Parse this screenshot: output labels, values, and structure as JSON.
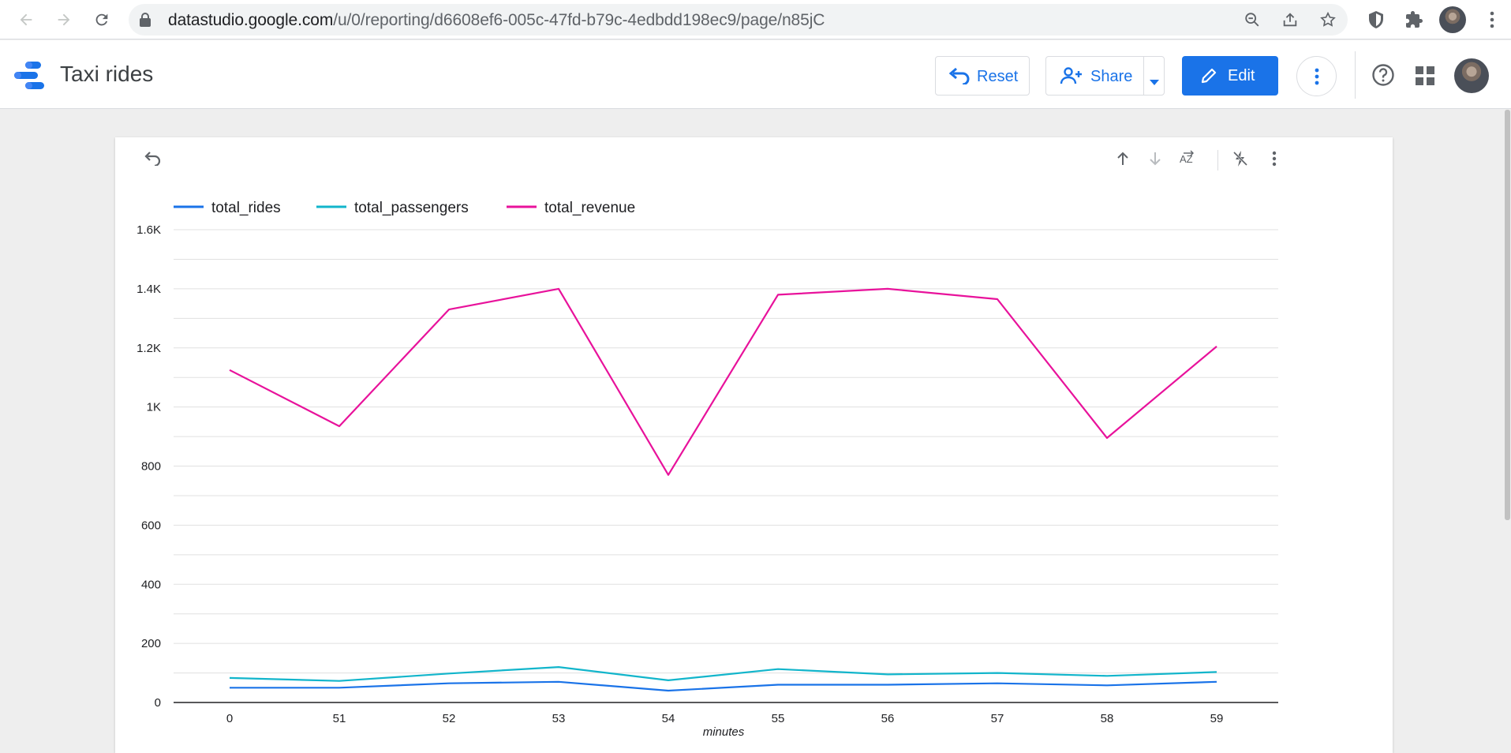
{
  "browser": {
    "url_host": "datastudio.google.com",
    "url_path": "/u/0/reporting/d6608ef6-005c-47fd-b79c-4edbdd198ec9/page/n85jC"
  },
  "header": {
    "title": "Taxi rides",
    "reset_label": "Reset",
    "share_label": "Share",
    "edit_label": "Edit"
  },
  "colors": {
    "accent": "#1a73e8",
    "total_rides": "#1a73e8",
    "total_passengers": "#12b5cb",
    "total_revenue": "#e8129b"
  },
  "icons": {
    "back": "arrow-back-icon",
    "forward": "arrow-forward-icon",
    "reload": "reload-icon",
    "lock": "lock-icon",
    "zoom": "zoom-out-icon",
    "share_page": "share-page-icon",
    "bookmark": "star-icon",
    "shield": "shield-extension-icon",
    "extensions": "puzzle-icon",
    "chrome_menu": "more-vert-icon",
    "reset": "undo-icon",
    "share": "add-person-icon",
    "edit": "pencil-icon",
    "help": "help-icon",
    "apps": "apps-grid-icon",
    "chart_undo": "undo-icon",
    "sort_asc": "arrow-up-icon",
    "sort_desc": "arrow-down-icon",
    "sort_az": "sort-az-icon",
    "drill": "lightning-off-icon",
    "chart_menu": "more-vert-icon"
  },
  "chart_data": {
    "type": "line",
    "xlabel": "minutes",
    "ylabel": "",
    "categories": [
      "0",
      "51",
      "52",
      "53",
      "54",
      "55",
      "56",
      "57",
      "58",
      "59"
    ],
    "ylim": [
      0,
      1600
    ],
    "yticks": [
      0,
      200,
      400,
      600,
      800,
      1000,
      1200,
      1400,
      1600
    ],
    "ytick_labels": [
      "0",
      "200",
      "400",
      "600",
      "800",
      "1K",
      "1.2K",
      "1.4K",
      "1.6K"
    ],
    "grid": true,
    "legend_position": "top-left",
    "series": [
      {
        "name": "total_rides",
        "color": "#1a73e8",
        "values": [
          50,
          50,
          65,
          70,
          40,
          60,
          60,
          65,
          58,
          70
        ]
      },
      {
        "name": "total_passengers",
        "color": "#12b5cb",
        "values": [
          83,
          73,
          98,
          120,
          75,
          113,
          95,
          100,
          90,
          103
        ]
      },
      {
        "name": "total_revenue",
        "color": "#e8129b",
        "values": [
          1125,
          935,
          1330,
          1400,
          770,
          1380,
          1400,
          1365,
          895,
          1205
        ]
      }
    ]
  }
}
